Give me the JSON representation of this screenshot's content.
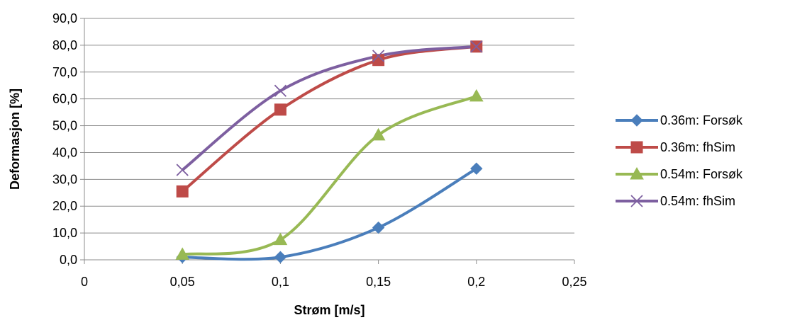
{
  "chart_data": {
    "type": "line",
    "title": "",
    "xlabel": "Strøm [m/s]",
    "ylabel": "Deformasjon [%]",
    "xlim": [
      0,
      0.25
    ],
    "ylim": [
      0,
      90
    ],
    "x_ticks": [
      {
        "value": 0,
        "label": "0"
      },
      {
        "value": 0.05,
        "label": "0,05"
      },
      {
        "value": 0.1,
        "label": "0,1"
      },
      {
        "value": 0.15,
        "label": "0,15"
      },
      {
        "value": 0.2,
        "label": "0,2"
      },
      {
        "value": 0.25,
        "label": "0,25"
      }
    ],
    "y_ticks": [
      {
        "value": 0,
        "label": "0,0"
      },
      {
        "value": 10,
        "label": "10,0"
      },
      {
        "value": 20,
        "label": "20,0"
      },
      {
        "value": 30,
        "label": "30,0"
      },
      {
        "value": 40,
        "label": "40,0"
      },
      {
        "value": 50,
        "label": "50,0"
      },
      {
        "value": 60,
        "label": "60,0"
      },
      {
        "value": 70,
        "label": "70,0"
      },
      {
        "value": 80,
        "label": "80,0"
      },
      {
        "value": 90,
        "label": "90,0"
      }
    ],
    "grid": "horizontal",
    "smooth": true,
    "legend_position": "right",
    "x": [
      0.05,
      0.1,
      0.15,
      0.2
    ],
    "series": [
      {
        "name": "0.36m: Forsøk",
        "values": [
          1.0,
          1.0,
          12.0,
          34.0
        ],
        "color": "#4a7ebb",
        "marker": "diamond"
      },
      {
        "name": "0.36m: fhSim",
        "values": [
          25.5,
          56.0,
          74.5,
          79.5
        ],
        "color": "#be4b48",
        "marker": "square"
      },
      {
        "name": "0.54m: Forsøk",
        "values": [
          2.0,
          7.5,
          46.5,
          61.0
        ],
        "color": "#98b954",
        "marker": "triangle"
      },
      {
        "name": "0.54m: fhSim",
        "values": [
          33.5,
          63.0,
          76.0,
          79.5
        ],
        "color": "#7d5fa0",
        "marker": "x"
      }
    ]
  }
}
